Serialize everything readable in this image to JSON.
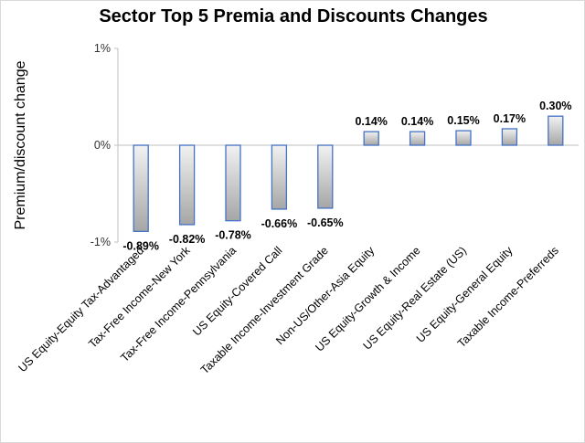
{
  "chart_data": {
    "type": "bar",
    "title": "Sector Top 5 Premia and Discounts Changes",
    "ylabel": "Premium/discount change",
    "xlabel": "",
    "ylim": [
      -1,
      1
    ],
    "yticks": [
      {
        "value": 1,
        "label": "1%"
      },
      {
        "value": 0,
        "label": "0%"
      },
      {
        "value": -1,
        "label": "-1%"
      }
    ],
    "grid": false,
    "legend": "none",
    "categories": [
      "US Equity-Equity Tax-Advantaged",
      "Tax-Free Income-New York",
      "Tax-Free Income-Pennsylvania",
      "US Equity-Covered Call",
      "Taxable Income-Investment Grade",
      "Non-US/Other-Asia Equity",
      "US Equity-Growth & Income",
      "US Equity-Real Estate (US)",
      "US Equity-General Equity",
      "Taxable Income-Preferreds"
    ],
    "values": [
      -0.89,
      -0.82,
      -0.78,
      -0.66,
      -0.65,
      0.14,
      0.14,
      0.15,
      0.17,
      0.3
    ],
    "data_labels": [
      "-0.89%",
      "-0.82%",
      "-0.78%",
      "-0.66%",
      "-0.65%",
      "0.14%",
      "0.14%",
      "0.15%",
      "0.17%",
      "0.30%"
    ],
    "colors": {
      "bar_fill_top": "#f2f2f2",
      "bar_fill_bottom": "#a6a6a6",
      "bar_border": "#4472c4",
      "axis": "#bfbfbf"
    }
  }
}
